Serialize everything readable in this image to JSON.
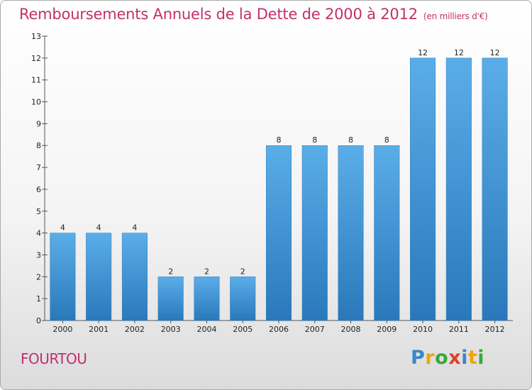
{
  "title": "Remboursements Annuels de la Dette de 2000 à 2012",
  "unit": "(en milliers d'€)",
  "place": "FOURTOU",
  "logo": {
    "text": "Proxiti",
    "letters": [
      {
        "ch": "P",
        "color": "#3a86c8"
      },
      {
        "ch": "r",
        "color": "#f0a500"
      },
      {
        "ch": "o",
        "color": "#3aa83a"
      },
      {
        "ch": "x",
        "color": "#e0402a"
      },
      {
        "ch": "i",
        "color": "#3a86c8"
      },
      {
        "ch": "t",
        "color": "#f0a500"
      },
      {
        "ch": "i",
        "color": "#3aa83a"
      }
    ]
  },
  "colors": {
    "accent": "#c2306c",
    "bar_light": "#5aaee8",
    "bar_dark": "#2a78bb"
  },
  "chart_data": {
    "type": "bar",
    "title": "Remboursements Annuels de la Dette de 2000 à 2012",
    "unit": "(en milliers d'€)",
    "categories": [
      "2000",
      "2001",
      "2002",
      "2003",
      "2004",
      "2005",
      "2006",
      "2007",
      "2008",
      "2009",
      "2010",
      "2011",
      "2012"
    ],
    "values": [
      4,
      4,
      4,
      2,
      2,
      2,
      8,
      8,
      8,
      8,
      12,
      12,
      12
    ],
    "yticks": [
      0,
      1,
      2,
      3,
      4,
      5,
      6,
      7,
      8,
      9,
      10,
      11,
      12,
      13
    ],
    "ylim": [
      0,
      13
    ],
    "grid": false,
    "legend": "none"
  }
}
